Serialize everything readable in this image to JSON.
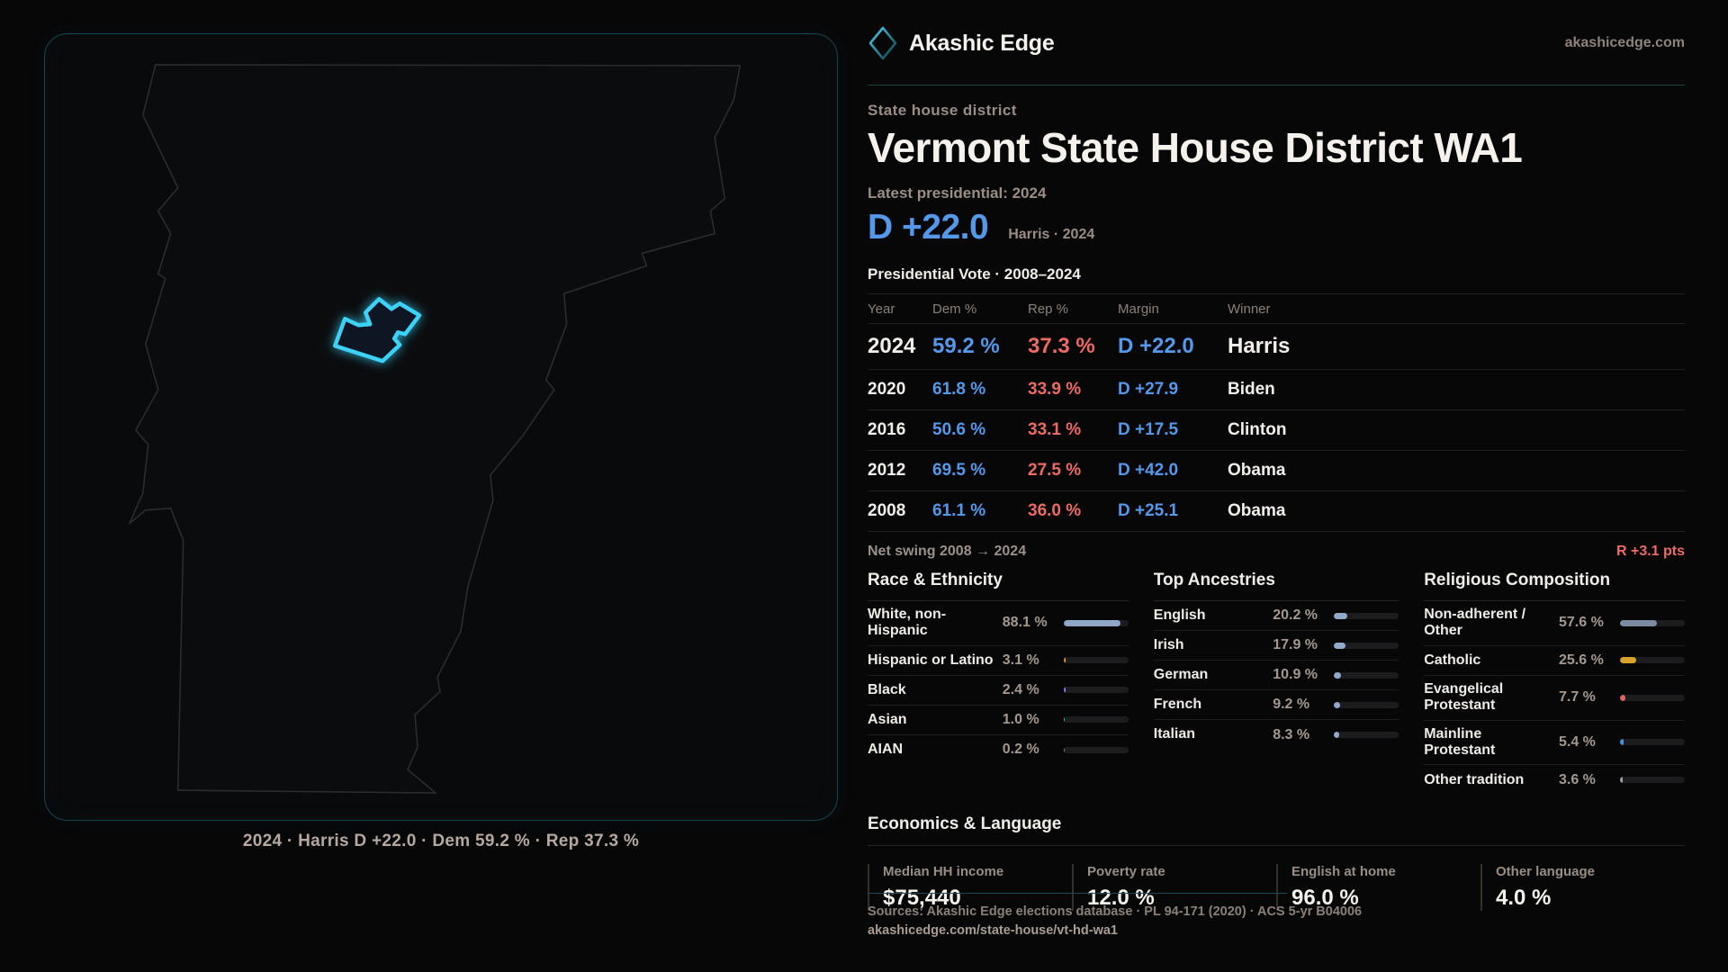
{
  "colors": {
    "dem_blue": "#5598ea",
    "rep_red": "#ec6a64",
    "district_cyan": "#3ed2f5",
    "panel_border_teal": "#17454f",
    "bar_track": "#1c1c1f"
  },
  "header": {
    "brand": "Akashic Edge",
    "site": "akashicedge.com",
    "logo_icon": "diamond-icon"
  },
  "hero": {
    "kicker": "State house district",
    "title": "Vermont State House District WA1",
    "latest_label": "Latest presidential: 2024",
    "margin": "D +22.0",
    "margin_note": "Harris · 2024"
  },
  "vote_table": {
    "title": "Presidential Vote · 2008–2024",
    "columns": [
      "Year",
      "Dem %",
      "Rep %",
      "Margin",
      "Winner"
    ],
    "rows": [
      {
        "year": "2024",
        "dem": "59.2 %",
        "rep": "37.3 %",
        "margin": "D +22.0",
        "winner": "Harris",
        "featured": true
      },
      {
        "year": "2020",
        "dem": "61.8 %",
        "rep": "33.9 %",
        "margin": "D +27.9",
        "winner": "Biden",
        "featured": false
      },
      {
        "year": "2016",
        "dem": "50.6 %",
        "rep": "33.1 %",
        "margin": "D +17.5",
        "winner": "Clinton",
        "featured": false
      },
      {
        "year": "2012",
        "dem": "69.5 %",
        "rep": "27.5 %",
        "margin": "D +42.0",
        "winner": "Obama",
        "featured": false
      },
      {
        "year": "2008",
        "dem": "61.1 %",
        "rep": "36.0 %",
        "margin": "D +25.1",
        "winner": "Obama",
        "featured": false
      }
    ]
  },
  "net_swing": {
    "label": "Net swing 2008 → 2024",
    "value": "R +3.1 pts"
  },
  "demographics": [
    {
      "title": "Race & Ethnicity",
      "rows": [
        {
          "label": "White, non-Hispanic",
          "value": "88.1 %",
          "pct": 88.1,
          "color": "#8fa6c7"
        },
        {
          "label": "Hispanic or Latino",
          "value": "3.1 %",
          "pct": 3.1,
          "color": "#e0942e"
        },
        {
          "label": "Black",
          "value": "2.4 %",
          "pct": 2.4,
          "color": "#8f7df0"
        },
        {
          "label": "Asian",
          "value": "1.0 %",
          "pct": 1.0,
          "color": "#3ecfa5"
        },
        {
          "label": "AIAN",
          "value": "0.2 %",
          "pct": 0.2,
          "color": "#8a8a8a"
        }
      ]
    },
    {
      "title": "Top Ancestries",
      "rows": [
        {
          "label": "English",
          "value": "20.2 %",
          "pct": 20.2,
          "color": "#93a9c9"
        },
        {
          "label": "Irish",
          "value": "17.9 %",
          "pct": 17.9,
          "color": "#93a9c9"
        },
        {
          "label": "German",
          "value": "10.9 %",
          "pct": 10.9,
          "color": "#93a9c9"
        },
        {
          "label": "French",
          "value": "9.2 %",
          "pct": 9.2,
          "color": "#93a9c9"
        },
        {
          "label": "Italian",
          "value": "8.3 %",
          "pct": 8.3,
          "color": "#93a9c9"
        }
      ]
    },
    {
      "title": "Religious Composition",
      "rows": [
        {
          "label": "Non-adherent / Other",
          "value": "57.6 %",
          "pct": 57.6,
          "color": "#7d8ba0"
        },
        {
          "label": "Catholic",
          "value": "25.6 %",
          "pct": 25.6,
          "color": "#d9a42b"
        },
        {
          "label": "Evangelical Protestant",
          "value": "7.7 %",
          "pct": 7.7,
          "color": "#e06262"
        },
        {
          "label": "Mainline Protestant",
          "value": "5.4 %",
          "pct": 5.4,
          "color": "#4a90e2"
        },
        {
          "label": "Other tradition",
          "value": "3.6 %",
          "pct": 3.6,
          "color": "#9aa0a8"
        }
      ]
    }
  ],
  "economics": {
    "title": "Economics & Language",
    "stats": [
      {
        "label": "Median HH income",
        "value": "$75,440"
      },
      {
        "label": "Poverty rate",
        "value": "12.0 %"
      },
      {
        "label": "English at home",
        "value": "96.0 %"
      },
      {
        "label": "Other language",
        "value": "4.0 %"
      }
    ]
  },
  "footer": {
    "sources": "Sources: Akashic Edge elections database · PL 94-171 (2020) · ACS 5-yr B04006",
    "url": "akashicedge.com/state-house/vt-hd-wa1"
  },
  "map": {
    "caption": "2024 · Harris D +22.0 · Dem 59.2 % · Rep 37.3 %",
    "state": "Vermont",
    "highlighted_district": "WA1"
  }
}
